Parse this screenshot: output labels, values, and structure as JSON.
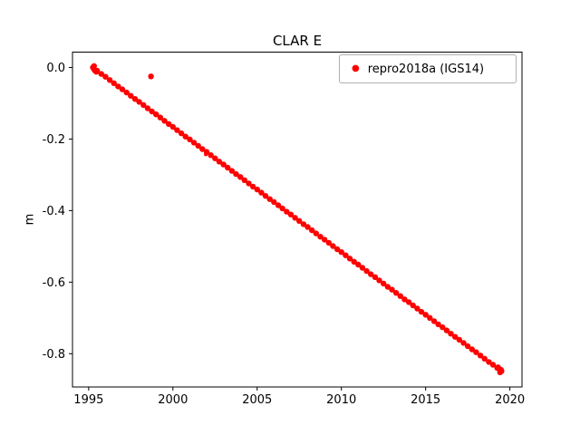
{
  "chart_data": {
    "type": "scatter",
    "title": "CLAR E",
    "xlabel": "",
    "ylabel": "m",
    "xlim": [
      1994.04,
      2020.72
    ],
    "ylim": [
      -0.893,
      0.043
    ],
    "grid": false,
    "xticks": [
      {
        "v": 1995,
        "label": "1995"
      },
      {
        "v": 2000,
        "label": "2000"
      },
      {
        "v": 2005,
        "label": "2005"
      },
      {
        "v": 2010,
        "label": "2010"
      },
      {
        "v": 2015,
        "label": "2015"
      },
      {
        "v": 2020,
        "label": "2020"
      }
    ],
    "yticks": [
      {
        "v": 0.0,
        "label": "0.0"
      },
      {
        "v": -0.2,
        "label": "-0.2"
      },
      {
        "v": -0.4,
        "label": "-0.4"
      },
      {
        "v": -0.6,
        "label": "-0.6"
      },
      {
        "v": -0.8,
        "label": "-0.8"
      }
    ],
    "legend": {
      "location": "upper right",
      "entries": [
        {
          "label": "repro2018a (IGS14)",
          "color": "#ff0000",
          "marker": "dot"
        }
      ]
    },
    "series": [
      {
        "name": "repro2018a (IGS14)",
        "color": "#ff0000",
        "marker_radius": 3.2,
        "trend": {
          "start": [
            1995.25,
            0.0
          ],
          "end": [
            2019.5,
            -0.849
          ],
          "slope_m_per_year": -0.035
        },
        "points": [
          [
            1995.25,
            0.0
          ],
          [
            1995.28,
            -0.002
          ],
          [
            1995.32,
            0.004
          ],
          [
            1995.36,
            -0.008
          ],
          [
            1995.45,
            -0.012
          ],
          [
            1995.5,
            -0.009
          ],
          [
            1995.75,
            -0.018
          ],
          [
            1996.0,
            -0.026
          ],
          [
            1996.25,
            -0.035
          ],
          [
            1996.5,
            -0.044
          ],
          [
            1996.75,
            -0.053
          ],
          [
            1997.0,
            -0.061
          ],
          [
            1997.25,
            -0.07
          ],
          [
            1997.5,
            -0.079
          ],
          [
            1997.75,
            -0.088
          ],
          [
            1998.0,
            -0.096
          ],
          [
            1998.25,
            -0.105
          ],
          [
            1998.5,
            -0.114
          ],
          [
            1998.75,
            -0.123
          ],
          [
            1999.0,
            -0.131
          ],
          [
            1999.25,
            -0.14
          ],
          [
            1999.5,
            -0.149
          ],
          [
            1999.75,
            -0.158
          ],
          [
            2000.0,
            -0.166
          ],
          [
            2000.25,
            -0.175
          ],
          [
            2000.5,
            -0.184
          ],
          [
            2000.75,
            -0.193
          ],
          [
            2001.0,
            -0.201
          ],
          [
            2001.25,
            -0.21
          ],
          [
            2001.5,
            -0.219
          ],
          [
            2001.75,
            -0.228
          ],
          [
            2002.0,
            -0.236
          ],
          [
            2002.25,
            -0.245
          ],
          [
            2002.5,
            -0.254
          ],
          [
            2002.75,
            -0.263
          ],
          [
            2003.0,
            -0.271
          ],
          [
            2003.25,
            -0.28
          ],
          [
            2003.5,
            -0.289
          ],
          [
            2003.75,
            -0.298
          ],
          [
            2004.0,
            -0.306
          ],
          [
            2004.25,
            -0.315
          ],
          [
            2004.5,
            -0.324
          ],
          [
            2004.75,
            -0.333
          ],
          [
            2005.0,
            -0.341
          ],
          [
            2005.25,
            -0.35
          ],
          [
            2005.5,
            -0.359
          ],
          [
            2005.75,
            -0.368
          ],
          [
            2006.0,
            -0.376
          ],
          [
            2006.25,
            -0.385
          ],
          [
            2006.5,
            -0.394
          ],
          [
            2006.75,
            -0.403
          ],
          [
            2007.0,
            -0.411
          ],
          [
            2007.25,
            -0.42
          ],
          [
            2007.5,
            -0.429
          ],
          [
            2007.75,
            -0.438
          ],
          [
            2008.0,
            -0.446
          ],
          [
            2008.25,
            -0.455
          ],
          [
            2008.5,
            -0.464
          ],
          [
            2008.75,
            -0.473
          ],
          [
            2009.0,
            -0.481
          ],
          [
            2009.25,
            -0.49
          ],
          [
            2009.5,
            -0.499
          ],
          [
            2009.75,
            -0.508
          ],
          [
            2010.0,
            -0.516
          ],
          [
            2010.25,
            -0.525
          ],
          [
            2010.5,
            -0.534
          ],
          [
            2010.75,
            -0.543
          ],
          [
            2011.0,
            -0.551
          ],
          [
            2011.25,
            -0.56
          ],
          [
            2011.5,
            -0.569
          ],
          [
            2011.75,
            -0.578
          ],
          [
            2012.0,
            -0.586
          ],
          [
            2012.25,
            -0.595
          ],
          [
            2012.5,
            -0.604
          ],
          [
            2012.75,
            -0.613
          ],
          [
            2013.0,
            -0.621
          ],
          [
            2013.25,
            -0.63
          ],
          [
            2013.5,
            -0.639
          ],
          [
            2013.75,
            -0.648
          ],
          [
            2014.0,
            -0.656
          ],
          [
            2014.25,
            -0.665
          ],
          [
            2014.5,
            -0.674
          ],
          [
            2014.75,
            -0.683
          ],
          [
            2015.0,
            -0.691
          ],
          [
            2015.25,
            -0.7
          ],
          [
            2015.5,
            -0.709
          ],
          [
            2015.75,
            -0.718
          ],
          [
            2016.0,
            -0.726
          ],
          [
            2016.25,
            -0.735
          ],
          [
            2016.5,
            -0.744
          ],
          [
            2016.75,
            -0.753
          ],
          [
            2017.0,
            -0.761
          ],
          [
            2017.25,
            -0.77
          ],
          [
            2017.5,
            -0.779
          ],
          [
            2017.75,
            -0.788
          ],
          [
            2018.0,
            -0.796
          ],
          [
            2018.25,
            -0.805
          ],
          [
            2018.5,
            -0.814
          ],
          [
            2018.75,
            -0.823
          ],
          [
            2019.0,
            -0.831
          ],
          [
            2019.25,
            -0.84
          ],
          [
            2019.3,
            -0.838
          ],
          [
            2019.42,
            -0.852
          ],
          [
            2019.48,
            -0.845
          ],
          [
            2019.5,
            -0.849
          ]
        ],
        "outliers": [
          {
            "x": 1998.7,
            "y": -0.025,
            "r": 3.2
          },
          {
            "x": 2001.95,
            "y": -0.243,
            "r": 2.0
          }
        ]
      }
    ]
  }
}
